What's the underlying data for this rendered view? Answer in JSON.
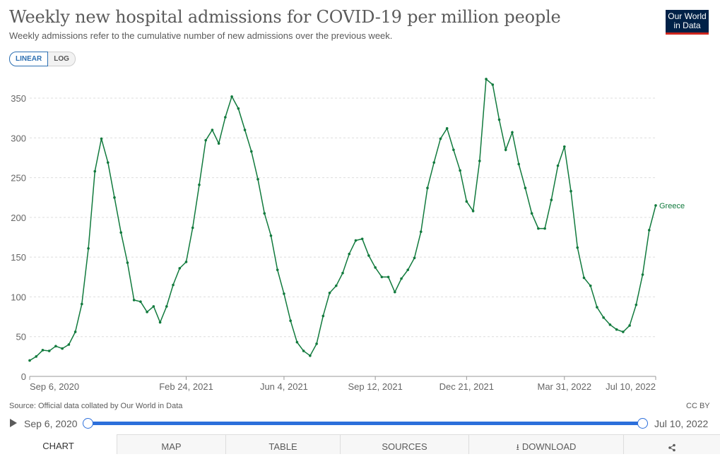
{
  "header": {
    "title": "Weekly new hospital admissions for COVID-19 per million people",
    "subtitle": "Weekly admissions refer to the cumulative number of new admissions over the previous week.",
    "logo_line1": "Our World",
    "logo_line2": "in Data"
  },
  "controls": {
    "linear_label": "LINEAR",
    "log_label": "LOG",
    "active_scale": "linear"
  },
  "footer": {
    "source": "Source: Official data collated by Our World in Data",
    "license": "CC BY"
  },
  "timeline": {
    "start_label": "Sep 6, 2020",
    "end_label": "Jul 10, 2022"
  },
  "tabs": {
    "chart": "CHART",
    "map": "MAP",
    "table": "TABLE",
    "sources": "SOURCES",
    "download": "DOWNLOAD",
    "share": "share-icon"
  },
  "colors": {
    "series": "#117a3d",
    "accent": "#2c6fdb",
    "logo_bg": "#002147",
    "logo_bar": "#ce261e"
  },
  "chart_data": {
    "type": "line",
    "title": "Weekly new hospital admissions for COVID-19 per million people",
    "ylim": [
      0,
      370
    ],
    "y_ticks": [
      0,
      50,
      100,
      150,
      200,
      250,
      300,
      350
    ],
    "x_tick_labels": [
      "Sep 6, 2020",
      "Feb 24, 2021",
      "Jun 4, 2021",
      "Sep 12, 2021",
      "Dec 21, 2021",
      "Mar 31, 2022",
      "Jul 10, 2022"
    ],
    "grid": "horizontal",
    "legend": "inline-end",
    "series": [
      {
        "name": "Greece",
        "x_start": "Sep 6, 2020",
        "x_end": "Jul 10, 2022",
        "interval": "weekly",
        "values": [
          20,
          25,
          33,
          32,
          38,
          35,
          40,
          56,
          91,
          161,
          258,
          299,
          269,
          225,
          181,
          143,
          96,
          94,
          81,
          88,
          68,
          88,
          115,
          136,
          144,
          187,
          241,
          297,
          310,
          293,
          326,
          352,
          337,
          310,
          283,
          248,
          205,
          177,
          134,
          104,
          70,
          43,
          32,
          26,
          41,
          76,
          105,
          114,
          130,
          154,
          171,
          173,
          152,
          137,
          125,
          125,
          106,
          123,
          134,
          149,
          182,
          237,
          269,
          299,
          312,
          285,
          259,
          220,
          208,
          271,
          374,
          367,
          323,
          285,
          307,
          267,
          237,
          205,
          186,
          186,
          222,
          265,
          289,
          233,
          162,
          124,
          114,
          87,
          74,
          65,
          59,
          56,
          64,
          90,
          128,
          184,
          215
        ]
      }
    ]
  }
}
